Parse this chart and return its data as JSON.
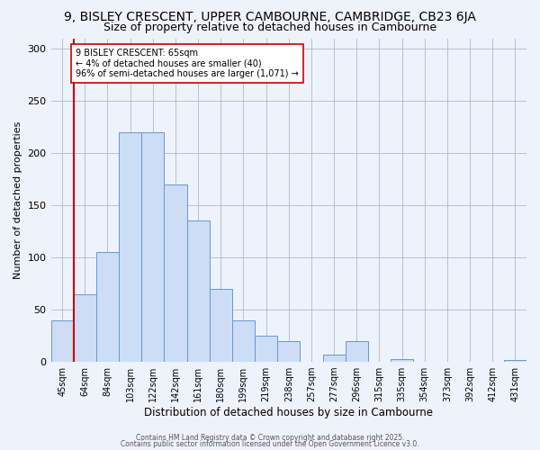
{
  "title": "9, BISLEY CRESCENT, UPPER CAMBOURNE, CAMBRIDGE, CB23 6JA",
  "subtitle": "Size of property relative to detached houses in Cambourne",
  "xlabel": "Distribution of detached houses by size in Cambourne",
  "ylabel": "Number of detached properties",
  "bar_labels": [
    "45sqm",
    "64sqm",
    "84sqm",
    "103sqm",
    "122sqm",
    "142sqm",
    "161sqm",
    "180sqm",
    "199sqm",
    "219sqm",
    "238sqm",
    "257sqm",
    "277sqm",
    "296sqm",
    "315sqm",
    "335sqm",
    "354sqm",
    "373sqm",
    "392sqm",
    "412sqm",
    "431sqm"
  ],
  "bar_values": [
    40,
    65,
    105,
    220,
    220,
    170,
    135,
    70,
    40,
    25,
    20,
    0,
    7,
    20,
    0,
    3,
    0,
    0,
    0,
    0,
    2
  ],
  "bar_color": "#ccddf5",
  "bar_edge_color": "#6699cc",
  "vline_x_index": 1,
  "vline_color": "#cc0000",
  "annotation_text": "9 BISLEY CRESCENT: 65sqm\n← 4% of detached houses are smaller (40)\n96% of semi-detached houses are larger (1,071) →",
  "annotation_box_color": "#ffffff",
  "annotation_box_edge": "#cc0000",
  "ylim": [
    0,
    310
  ],
  "yticks": [
    0,
    50,
    100,
    150,
    200,
    250,
    300
  ],
  "bg_color": "#eef2fb",
  "footer1": "Contains HM Land Registry data © Crown copyright and database right 2025.",
  "footer2": "Contains public sector information licensed under the Open Government Licence v3.0.",
  "title_fontsize": 10,
  "subtitle_fontsize": 9
}
